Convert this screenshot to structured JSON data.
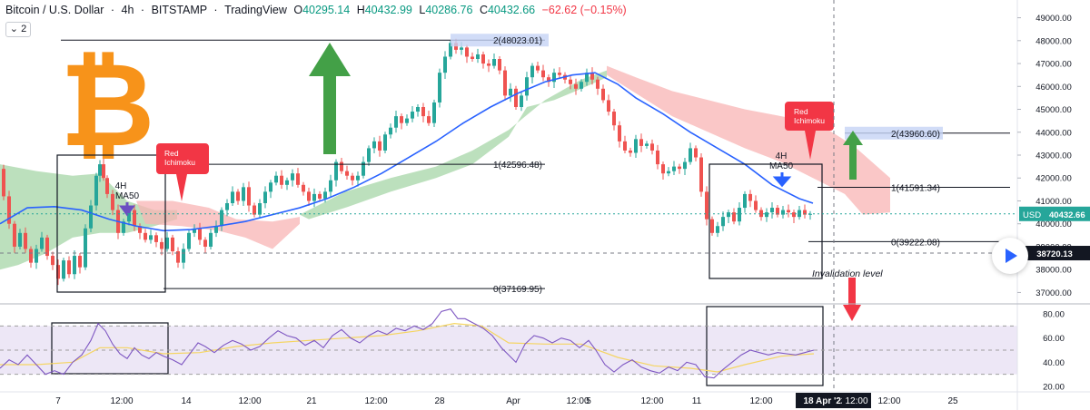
{
  "header": {
    "symbol": "Bitcoin / U.S. Dollar",
    "interval": "4h",
    "exchange": "BITSTAMP",
    "platform": "TradingView",
    "open_label": "O",
    "open": "40295.14",
    "high_label": "H",
    "high": "40432.99",
    "low_label": "L",
    "low": "40286.76",
    "close_label": "C",
    "close": "40432.66",
    "change": "−62.62 (−0.15%)",
    "indicator_count": "2"
  },
  "colors": {
    "up": "#26a69a",
    "down": "#ef5350",
    "ma": "#2962ff",
    "cloud_green": "#a5d6a7",
    "cloud_red": "#f8b4b4",
    "rsi": "#7e57c2",
    "rsi_signal": "#f5d562",
    "bitcoin": "#f7931a",
    "callout": "#f23645",
    "fib_band": "#c5d3f5",
    "arrow_up": "#43a047",
    "arrow_down": "#f23645"
  },
  "chart_data": {
    "type": "candlestick",
    "price_axis": {
      "ticks": [
        "49000.00",
        "48000.00",
        "47000.00",
        "46000.00",
        "45000.00",
        "44000.00",
        "43000.00",
        "42000.00",
        "41000.00",
        "40000.00",
        "39000.00",
        "38000.00",
        "37000.00"
      ],
      "ylim": [
        36700,
        49300
      ],
      "current_price_label": "40432.66",
      "current_price_prefix": "USD",
      "crosshair_price_label": "38720.13"
    },
    "rsi_axis": {
      "ticks": [
        "80.00",
        "60.00",
        "40.00",
        "20.00"
      ],
      "ylim": [
        17,
        86
      ],
      "upper_band": 70,
      "lower_band": 30
    },
    "x_axis": {
      "ticks": [
        "7",
        "12:00",
        "14",
        "12:00",
        "21",
        "12:00",
        "28",
        "12:00",
        "Apr",
        "12:00",
        "5",
        "12:00",
        "11",
        "12:00",
        "18 Apr '22",
        "12:00",
        "12:00",
        "25"
      ],
      "highlighted_tick": "18 Apr '22"
    },
    "fib_levels": [
      {
        "label": "2(48023.01)",
        "value": 48023.01
      },
      {
        "label": "1(42596.48)",
        "value": 42596.48
      },
      {
        "label": "0(37169.95)",
        "value": 37169.95
      },
      {
        "label": "2(43960.60)",
        "value": 43960.6
      },
      {
        "label": "1(41591.34)",
        "value": 41591.34
      },
      {
        "label": "0(39222.08)",
        "value": 39222.08
      }
    ],
    "annotations": {
      "callout_1": "Red\nIchimoku",
      "callout_2": "Red\nIchimoku",
      "box1_tf": "4H",
      "box1_ma": "MA50",
      "box2_tf": "4H",
      "box2_ma": "MA50",
      "invalidation": "Invalidation level"
    },
    "price_path": [
      [
        0,
        42400
      ],
      [
        6,
        41200
      ],
      [
        12,
        40000
      ],
      [
        18,
        39000
      ],
      [
        24,
        39600
      ],
      [
        30,
        38900
      ],
      [
        36,
        38300
      ],
      [
        42,
        38900
      ],
      [
        48,
        39400
      ],
      [
        54,
        38600
      ],
      [
        60,
        38200
      ],
      [
        66,
        37600
      ],
      [
        72,
        38400
      ],
      [
        78,
        37800
      ],
      [
        84,
        38600
      ],
      [
        90,
        38100
      ],
      [
        96,
        39800
      ],
      [
        102,
        40800
      ],
      [
        108,
        42100
      ],
      [
        112,
        42600
      ],
      [
        116,
        42000
      ],
      [
        120,
        41300
      ],
      [
        126,
        40600
      ],
      [
        132,
        39600
      ],
      [
        138,
        40100
      ],
      [
        144,
        40600
      ],
      [
        150,
        39900
      ],
      [
        156,
        39600
      ],
      [
        162,
        39300
      ],
      [
        168,
        39500
      ],
      [
        174,
        39200
      ],
      [
        180,
        38900
      ],
      [
        186,
        39400
      ],
      [
        192,
        38800
      ],
      [
        198,
        38300
      ],
      [
        204,
        38900
      ],
      [
        210,
        39600
      ],
      [
        216,
        39800
      ],
      [
        222,
        39300
      ],
      [
        228,
        39000
      ],
      [
        234,
        39600
      ],
      [
        240,
        39900
      ],
      [
        246,
        40600
      ],
      [
        252,
        40900
      ],
      [
        258,
        41400
      ],
      [
        264,
        41000
      ],
      [
        270,
        41600
      ],
      [
        276,
        40800
      ],
      [
        282,
        40400
      ],
      [
        288,
        40900
      ],
      [
        294,
        41400
      ],
      [
        300,
        41800
      ],
      [
        306,
        42100
      ],
      [
        312,
        41700
      ],
      [
        318,
        41900
      ],
      [
        324,
        42200
      ],
      [
        330,
        41700
      ],
      [
        336,
        41400
      ],
      [
        342,
        41000
      ],
      [
        348,
        41300
      ],
      [
        354,
        41100
      ],
      [
        360,
        41400
      ],
      [
        366,
        41900
      ],
      [
        372,
        42700
      ],
      [
        378,
        42300
      ],
      [
        384,
        42100
      ],
      [
        390,
        41900
      ],
      [
        396,
        42100
      ],
      [
        402,
        42700
      ],
      [
        408,
        43300
      ],
      [
        414,
        43600
      ],
      [
        420,
        43200
      ],
      [
        426,
        43900
      ],
      [
        432,
        44200
      ],
      [
        438,
        44700
      ],
      [
        444,
        44400
      ],
      [
        450,
        44600
      ],
      [
        456,
        44900
      ],
      [
        462,
        45100
      ],
      [
        468,
        44700
      ],
      [
        474,
        44400
      ],
      [
        480,
        45300
      ],
      [
        486,
        46600
      ],
      [
        492,
        47300
      ],
      [
        498,
        47900
      ],
      [
        504,
        47600
      ],
      [
        510,
        47700
      ],
      [
        516,
        47300
      ],
      [
        522,
        47200
      ],
      [
        528,
        47400
      ],
      [
        534,
        47000
      ],
      [
        540,
        46900
      ],
      [
        546,
        47200
      ],
      [
        552,
        46700
      ],
      [
        558,
        45600
      ],
      [
        564,
        45900
      ],
      [
        570,
        45100
      ],
      [
        576,
        45600
      ],
      [
        582,
        46400
      ],
      [
        588,
        46900
      ],
      [
        594,
        46700
      ],
      [
        600,
        46400
      ],
      [
        606,
        46200
      ],
      [
        612,
        46600
      ],
      [
        618,
        46500
      ],
      [
        624,
        46300
      ],
      [
        630,
        46100
      ],
      [
        636,
        45900
      ],
      [
        642,
        46200
      ],
      [
        648,
        46600
      ],
      [
        654,
        46300
      ],
      [
        660,
        45900
      ],
      [
        666,
        45400
      ],
      [
        672,
        44900
      ],
      [
        678,
        44300
      ],
      [
        684,
        43600
      ],
      [
        690,
        43200
      ],
      [
        696,
        43100
      ],
      [
        702,
        43700
      ],
      [
        708,
        43400
      ],
      [
        714,
        43500
      ],
      [
        720,
        43200
      ],
      [
        726,
        42600
      ],
      [
        732,
        42200
      ],
      [
        738,
        42300
      ],
      [
        744,
        42500
      ],
      [
        750,
        42400
      ],
      [
        756,
        42700
      ],
      [
        762,
        43300
      ],
      [
        768,
        42900
      ],
      [
        774,
        41400
      ],
      [
        780,
        40200
      ],
      [
        786,
        39600
      ],
      [
        792,
        39900
      ],
      [
        798,
        40300
      ],
      [
        804,
        40500
      ],
      [
        810,
        40100
      ],
      [
        816,
        40700
      ],
      [
        822,
        41300
      ],
      [
        828,
        41000
      ],
      [
        834,
        40600
      ],
      [
        840,
        40300
      ],
      [
        846,
        40500
      ],
      [
        852,
        40700
      ],
      [
        858,
        40400
      ],
      [
        864,
        40600
      ],
      [
        870,
        40500
      ],
      [
        876,
        40300
      ],
      [
        882,
        40600
      ],
      [
        888,
        40400
      ],
      [
        894,
        40433
      ]
    ],
    "ma50_path": [
      [
        0,
        40000
      ],
      [
        30,
        40700
      ],
      [
        60,
        40750
      ],
      [
        90,
        40600
      ],
      [
        120,
        40200
      ],
      [
        150,
        39900
      ],
      [
        180,
        39700
      ],
      [
        210,
        39750
      ],
      [
        240,
        39900
      ],
      [
        270,
        40100
      ],
      [
        300,
        40400
      ],
      [
        330,
        40700
      ],
      [
        360,
        41100
      ],
      [
        390,
        41600
      ],
      [
        420,
        42200
      ],
      [
        450,
        42900
      ],
      [
        480,
        43600
      ],
      [
        510,
        44400
      ],
      [
        540,
        45100
      ],
      [
        570,
        45700
      ],
      [
        600,
        46200
      ],
      [
        630,
        46500
      ],
      [
        655,
        46600
      ],
      [
        680,
        46100
      ],
      [
        700,
        45500
      ],
      [
        730,
        44800
      ],
      [
        760,
        44000
      ],
      [
        790,
        43300
      ],
      [
        820,
        42600
      ],
      [
        850,
        41700
      ],
      [
        880,
        41100
      ],
      [
        895,
        40900
      ]
    ],
    "rsi_path": [
      [
        0,
        35
      ],
      [
        10,
        42
      ],
      [
        20,
        38
      ],
      [
        30,
        46
      ],
      [
        40,
        38
      ],
      [
        50,
        30
      ],
      [
        60,
        33
      ],
      [
        70,
        30
      ],
      [
        80,
        40
      ],
      [
        90,
        46
      ],
      [
        100,
        58
      ],
      [
        108,
        72
      ],
      [
        116,
        66
      ],
      [
        124,
        55
      ],
      [
        132,
        47
      ],
      [
        140,
        43
      ],
      [
        148,
        52
      ],
      [
        156,
        46
      ],
      [
        164,
        43
      ],
      [
        172,
        48
      ],
      [
        180,
        45
      ],
      [
        190,
        42
      ],
      [
        200,
        38
      ],
      [
        210,
        48
      ],
      [
        218,
        56
      ],
      [
        226,
        53
      ],
      [
        236,
        48
      ],
      [
        246,
        54
      ],
      [
        256,
        58
      ],
      [
        266,
        55
      ],
      [
        276,
        50
      ],
      [
        286,
        53
      ],
      [
        296,
        60
      ],
      [
        306,
        66
      ],
      [
        316,
        62
      ],
      [
        326,
        60
      ],
      [
        336,
        54
      ],
      [
        346,
        58
      ],
      [
        356,
        52
      ],
      [
        366,
        62
      ],
      [
        376,
        67
      ],
      [
        386,
        60
      ],
      [
        396,
        56
      ],
      [
        406,
        62
      ],
      [
        416,
        66
      ],
      [
        426,
        63
      ],
      [
        436,
        68
      ],
      [
        446,
        66
      ],
      [
        456,
        70
      ],
      [
        466,
        67
      ],
      [
        476,
        72
      ],
      [
        486,
        82
      ],
      [
        496,
        84
      ],
      [
        504,
        76
      ],
      [
        512,
        76
      ],
      [
        522,
        72
      ],
      [
        532,
        68
      ],
      [
        542,
        62
      ],
      [
        552,
        52
      ],
      [
        560,
        46
      ],
      [
        568,
        40
      ],
      [
        578,
        55
      ],
      [
        588,
        62
      ],
      [
        598,
        60
      ],
      [
        608,
        56
      ],
      [
        618,
        60
      ],
      [
        628,
        58
      ],
      [
        638,
        52
      ],
      [
        648,
        58
      ],
      [
        656,
        50
      ],
      [
        666,
        38
      ],
      [
        676,
        32
      ],
      [
        686,
        38
      ],
      [
        696,
        42
      ],
      [
        706,
        36
      ],
      [
        716,
        33
      ],
      [
        726,
        31
      ],
      [
        736,
        36
      ],
      [
        746,
        33
      ],
      [
        756,
        40
      ],
      [
        766,
        38
      ],
      [
        776,
        28
      ],
      [
        786,
        27
      ],
      [
        796,
        34
      ],
      [
        806,
        40
      ],
      [
        816,
        46
      ],
      [
        826,
        50
      ],
      [
        836,
        48
      ],
      [
        846,
        46
      ],
      [
        856,
        48
      ],
      [
        866,
        47
      ],
      [
        876,
        46
      ],
      [
        886,
        48
      ],
      [
        896,
        50
      ]
    ],
    "rsi_signal_path": [
      [
        0,
        38
      ],
      [
        40,
        38
      ],
      [
        80,
        40
      ],
      [
        110,
        52
      ],
      [
        140,
        52
      ],
      [
        180,
        47
      ],
      [
        220,
        48
      ],
      [
        260,
        53
      ],
      [
        300,
        56
      ],
      [
        340,
        58
      ],
      [
        380,
        60
      ],
      [
        420,
        62
      ],
      [
        460,
        66
      ],
      [
        500,
        72
      ],
      [
        530,
        70
      ],
      [
        560,
        56
      ],
      [
        600,
        55
      ],
      [
        640,
        55
      ],
      [
        680,
        44
      ],
      [
        720,
        37
      ],
      [
        760,
        35
      ],
      [
        790,
        32
      ],
      [
        820,
        38
      ],
      [
        860,
        45
      ],
      [
        896,
        47
      ]
    ]
  }
}
